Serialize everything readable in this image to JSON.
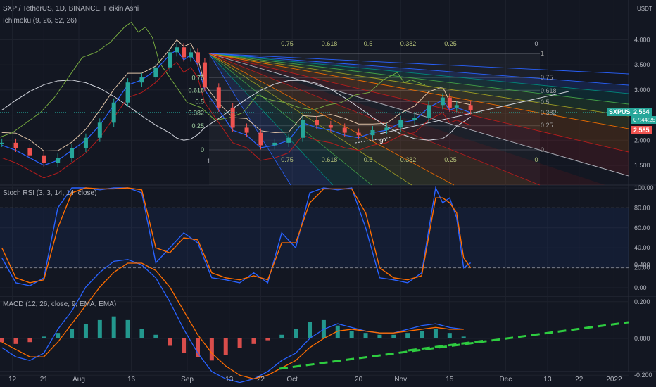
{
  "header": {
    "title": "SXP / TetherUS, 1D, BINANCE, Heikin Ashi",
    "indicator": "Ichimoku (9, 26, 52, 26)",
    "currency": "USDT"
  },
  "price_panel": {
    "ticks": [
      "4.000",
      "3.500",
      "3.000",
      "2.500",
      "2.000",
      "1.500"
    ],
    "tick_values": [
      4.0,
      3.5,
      3.0,
      2.5,
      2.0,
      1.5
    ],
    "symbol_badge": "SXPUSDT",
    "last_price": "2.554",
    "countdown": "07:44:25",
    "red_price": "2.585",
    "fib_top_labels": [
      "0.75",
      "0.618",
      "0.5",
      "0.382",
      "0.25",
      "0"
    ],
    "fib_bottom_labels": [
      "0.75",
      "0.618",
      "0.5",
      "0.382",
      "0.25",
      "0"
    ],
    "fib_left_labels": [
      "0.75",
      "0.618",
      "0.5",
      "0.382",
      "0.25",
      "0"
    ],
    "fib_right_labels": [
      "1",
      "0.75",
      "0.618",
      "0.5",
      "0.382",
      "0.25",
      "0"
    ],
    "start_label": "1",
    "angle_label": "9º"
  },
  "stoch_panel": {
    "title": "Stoch RSI (3, 3, 14, 14, close)",
    "ticks": [
      "100.00",
      "80.00",
      "60.00",
      "40.00",
      "20.00",
      "0.00"
    ],
    "tick_values": [
      100,
      80,
      60,
      40,
      20,
      0
    ]
  },
  "macd_panel": {
    "title": "MACD (12, 26, close, 9, EMA, EMA)",
    "ticks": [
      "0.400",
      "0.200",
      "0.000",
      "-0.200"
    ],
    "tick_values": [
      0.4,
      0.2,
      0.0,
      -0.2
    ]
  },
  "x_axis": {
    "labels": [
      "12",
      "21",
      "Aug",
      "16",
      "Sep",
      "13",
      "22",
      "Oct",
      "20",
      "Nov",
      "15",
      "Dec",
      "13",
      "22",
      "2022"
    ],
    "days": [
      -19,
      -10,
      0,
      15,
      31,
      43,
      52,
      61,
      80,
      92,
      106,
      122,
      134,
      143,
      153
    ]
  },
  "colors": {
    "background": "#131722",
    "up": "#26a69a",
    "down": "#ef5350",
    "stoch_k": "#2962ff",
    "stoch_d": "#ff6d00",
    "trend_dash": "#2ecc40"
  },
  "chart_data": [
    {
      "type": "candlestick",
      "title": "SXP / TetherUS, 1D, BINANCE, Heikin Ashi",
      "x_unit": "days since Aug 1",
      "x": [
        -22,
        -18,
        -14,
        -10,
        -6,
        -2,
        2,
        6,
        10,
        14,
        18,
        22,
        26,
        28,
        30,
        32,
        34,
        36,
        40,
        44,
        48,
        52,
        56,
        60,
        64,
        68,
        72,
        76,
        80,
        84,
        88,
        92,
        96,
        100,
        104,
        106,
        108,
        112
      ],
      "close": [
        1.95,
        1.85,
        1.7,
        1.55,
        1.65,
        1.85,
        2.05,
        2.35,
        2.75,
        3.15,
        3.25,
        3.45,
        3.75,
        3.85,
        3.65,
        3.75,
        3.55,
        3.05,
        2.65,
        2.25,
        2.15,
        1.9,
        1.95,
        2.05,
        2.4,
        2.3,
        2.25,
        2.15,
        2.1,
        2.2,
        2.25,
        2.4,
        2.45,
        2.7,
        2.85,
        2.65,
        2.7,
        2.6
      ],
      "ylim": [
        1.3,
        4.25
      ]
    },
    {
      "type": "line",
      "title": "Stoch RSI (3, 3, 14, 14, close)",
      "x_unit": "days since Aug 1",
      "x": [
        -22,
        -18,
        -14,
        -10,
        -6,
        -2,
        2,
        6,
        10,
        14,
        18,
        22,
        26,
        30,
        34,
        38,
        42,
        46,
        50,
        54,
        58,
        62,
        66,
        70,
        74,
        78,
        82,
        86,
        90,
        94,
        98,
        102,
        104,
        106,
        108,
        110,
        112
      ],
      "series": [
        {
          "name": "K",
          "values": [
            30,
            5,
            2,
            10,
            80,
            100,
            100,
            98,
            100,
            100,
            95,
            25,
            40,
            55,
            45,
            10,
            8,
            5,
            15,
            5,
            55,
            40,
            95,
            100,
            98,
            100,
            60,
            10,
            8,
            5,
            15,
            100,
            85,
            90,
            70,
            20,
            25
          ]
        },
        {
          "name": "D",
          "values": [
            40,
            10,
            5,
            8,
            60,
            95,
            100,
            99,
            99,
            100,
            98,
            40,
            35,
            50,
            48,
            15,
            10,
            8,
            12,
            8,
            45,
            45,
            85,
            99,
            99,
            99,
            75,
            20,
            10,
            8,
            12,
            90,
            90,
            85,
            75,
            30,
            20
          ]
        }
      ],
      "ylim": [
        0,
        100
      ]
    },
    {
      "type": "bar",
      "title": "MACD (12, 26, close, 9, EMA, EMA)",
      "x_unit": "days since Aug 1",
      "x": [
        -22,
        -18,
        -14,
        -10,
        -6,
        -2,
        2,
        6,
        10,
        14,
        18,
        22,
        26,
        30,
        34,
        38,
        42,
        46,
        50,
        54,
        58,
        62,
        66,
        70,
        74,
        78,
        82,
        86,
        90,
        94,
        98,
        102,
        106,
        110
      ],
      "series": [
        {
          "name": "Histogram",
          "values": [
            -0.02,
            -0.03,
            -0.02,
            0.01,
            0.03,
            0.05,
            0.08,
            0.1,
            0.12,
            0.1,
            0.05,
            0.02,
            -0.04,
            -0.08,
            -0.1,
            -0.12,
            -0.09,
            -0.05,
            -0.03,
            -0.01,
            0.02,
            0.05,
            0.09,
            0.1,
            0.07,
            0.04,
            0.03,
            0.02,
            0.02,
            0.03,
            0.04,
            0.05,
            0.03,
            0.01
          ]
        },
        {
          "name": "MACD",
          "values": [
            -0.05,
            -0.1,
            -0.12,
            -0.08,
            0.05,
            0.15,
            0.28,
            0.36,
            0.42,
            0.43,
            0.4,
            0.33,
            0.2,
            0.05,
            -0.08,
            -0.18,
            -0.22,
            -0.24,
            -0.22,
            -0.18,
            -0.12,
            -0.08,
            0.0,
            0.05,
            0.08,
            0.06,
            0.04,
            0.03,
            0.03,
            0.05,
            0.07,
            0.08,
            0.06,
            0.05
          ]
        },
        {
          "name": "Signal",
          "values": [
            -0.02,
            -0.06,
            -0.1,
            -0.1,
            -0.02,
            0.08,
            0.18,
            0.28,
            0.36,
            0.41,
            0.41,
            0.37,
            0.28,
            0.15,
            0.02,
            -0.08,
            -0.15,
            -0.2,
            -0.22,
            -0.2,
            -0.16,
            -0.12,
            -0.05,
            0.0,
            0.04,
            0.05,
            0.04,
            0.03,
            0.03,
            0.04,
            0.05,
            0.06,
            0.05,
            0.05
          ]
        }
      ],
      "ylim": [
        -0.26,
        0.42
      ]
    }
  ]
}
